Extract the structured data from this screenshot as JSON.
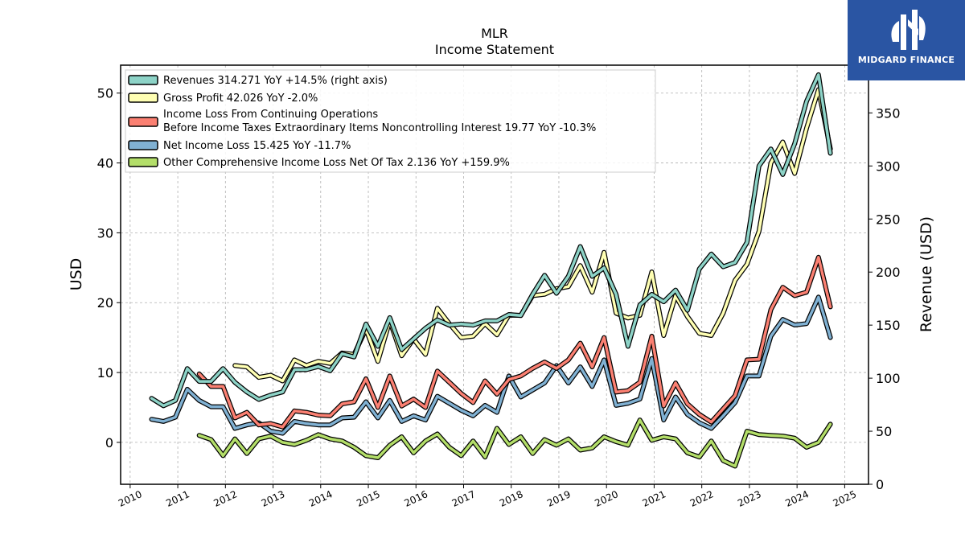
{
  "chart_data": {
    "type": "line",
    "title": "MLR",
    "subtitle": "Income Statement",
    "ylabel": "USD",
    "y2label": "Revenue (USD)",
    "ylim": [
      -6,
      54
    ],
    "y2lim": [
      0,
      395
    ],
    "xlim": [
      2009.8,
      2025.5
    ],
    "yticks": [
      0,
      10,
      20,
      30,
      40,
      50
    ],
    "y2ticks": [
      0,
      50,
      100,
      150,
      200,
      250,
      300,
      350
    ],
    "xticks": [
      "2010",
      "2011",
      "2012",
      "2013",
      "2014",
      "2015",
      "2016",
      "2017",
      "2018",
      "2019",
      "2020",
      "2021",
      "2022",
      "2023",
      "2024",
      "2025"
    ],
    "grid": true,
    "legend_position": "top-left",
    "colors": {
      "revenues": "#8dd3c7",
      "gross_profit": "#ffffb3",
      "income_before_tax": "#fb8072",
      "net_income": "#80b1d3",
      "oci": "#b3de69"
    },
    "series": [
      {
        "key": "revenues",
        "name": "Revenues  314.271 YoY +14.5% (right axis)",
        "axis": "right",
        "color": "#8dd3c7",
        "x": [
          2010.45,
          2010.7,
          2010.95,
          2011.2,
          2011.45,
          2011.7,
          2011.95,
          2012.2,
          2012.45,
          2012.7,
          2012.95,
          2013.2,
          2013.45,
          2013.7,
          2013.95,
          2014.2,
          2014.45,
          2014.7,
          2014.95,
          2015.2,
          2015.45,
          2015.7,
          2015.95,
          2016.2,
          2016.45,
          2016.7,
          2016.95,
          2017.2,
          2017.45,
          2017.7,
          2017.95,
          2018.2,
          2018.45,
          2018.7,
          2018.95,
          2019.2,
          2019.45,
          2019.7,
          2019.95,
          2020.2,
          2020.45,
          2020.7,
          2020.95,
          2021.2,
          2021.45,
          2021.7,
          2021.95,
          2022.2,
          2022.45,
          2022.7,
          2022.95,
          2023.2,
          2023.45,
          2023.7,
          2023.95,
          2024.2,
          2024.45,
          2024.7
        ],
        "values": [
          81,
          74,
          79,
          109,
          97,
          97,
          109,
          96,
          87,
          80,
          84,
          87,
          108,
          108,
          111,
          107,
          123,
          120,
          151,
          130,
          157,
          127,
          137,
          147,
          155,
          150,
          151,
          150,
          154,
          154,
          160,
          159,
          179,
          197,
          180,
          196,
          224,
          196,
          204,
          179,
          130,
          169,
          179,
          172,
          183,
          164,
          203,
          217,
          205,
          209,
          228,
          300,
          316,
          292,
          321,
          361,
          386,
          312
        ]
      },
      {
        "key": "gross_profit",
        "name": "Gross Profit  42.026 YoY -2.0%",
        "axis": "left",
        "color": "#ffffb3",
        "x": [
          2012.2,
          2012.45,
          2012.7,
          2012.95,
          2013.2,
          2013.45,
          2013.7,
          2013.95,
          2014.2,
          2014.45,
          2014.7,
          2014.95,
          2015.2,
          2015.45,
          2015.7,
          2015.95,
          2016.2,
          2016.45,
          2016.7,
          2016.95,
          2017.2,
          2017.45,
          2017.7,
          2017.95,
          2018.2,
          2018.45,
          2018.7,
          2018.95,
          2019.2,
          2019.45,
          2019.7,
          2019.95,
          2020.2,
          2020.45,
          2020.7,
          2020.95,
          2021.2,
          2021.45,
          2021.7,
          2021.95,
          2022.2,
          2022.45,
          2022.7,
          2022.95,
          2023.2,
          2023.45,
          2023.7,
          2023.95,
          2024.2,
          2024.45,
          2024.7
        ],
        "values": [
          11,
          10.8,
          9.3,
          9.6,
          8.8,
          11.8,
          11,
          11.6,
          11.3,
          12.8,
          12.6,
          16.2,
          11.6,
          17.4,
          12.4,
          14.8,
          12.6,
          19.2,
          17,
          15,
          15.2,
          17,
          15.4,
          18.2,
          18.2,
          21,
          21.2,
          22,
          22.3,
          25.3,
          21.5,
          27.2,
          18.5,
          17.8,
          18.2,
          24.4,
          15.3,
          21,
          18,
          15.6,
          15.3,
          18.5,
          23.2,
          25.5,
          30.2,
          40,
          43,
          38.5,
          45,
          50.5,
          42
        ]
      },
      {
        "key": "income_before_tax",
        "name": "Income Loss From Continuing Operations\nBefore Income Taxes Extraordinary Items Noncontrolling Interest  19.77 YoY -10.3%",
        "axis": "left",
        "color": "#fb8072",
        "x": [
          2011.45,
          2011.7,
          2011.95,
          2012.2,
          2012.45,
          2012.7,
          2012.95,
          2013.2,
          2013.45,
          2013.7,
          2013.95,
          2014.2,
          2014.45,
          2014.7,
          2014.95,
          2015.2,
          2015.45,
          2015.7,
          2015.95,
          2016.2,
          2016.45,
          2016.7,
          2016.95,
          2017.2,
          2017.45,
          2017.7,
          2017.95,
          2018.2,
          2018.45,
          2018.7,
          2018.95,
          2019.2,
          2019.45,
          2019.7,
          2019.95,
          2020.2,
          2020.45,
          2020.7,
          2020.95,
          2021.2,
          2021.45,
          2021.7,
          2021.95,
          2022.2,
          2022.45,
          2022.7,
          2022.95,
          2023.2,
          2023.45,
          2023.7,
          2023.95,
          2024.2,
          2024.45,
          2024.7
        ],
        "values": [
          9.8,
          8,
          8,
          3.5,
          4.3,
          2.5,
          2.7,
          2.2,
          4.5,
          4.3,
          3.9,
          3.8,
          5.5,
          5.8,
          9.1,
          5,
          9.5,
          5.2,
          6.2,
          5,
          10.2,
          8.6,
          7,
          5.7,
          8.8,
          6.9,
          9,
          9.5,
          10.6,
          11.5,
          10.6,
          11.8,
          14.2,
          10.8,
          15,
          7.2,
          7.4,
          8.6,
          15.2,
          5.2,
          8.5,
          5.5,
          4,
          2.9,
          4.8,
          6.7,
          11.8,
          11.9,
          19,
          22.2,
          21,
          21.5,
          26.5,
          19.4
        ]
      },
      {
        "key": "net_income",
        "name": "Net Income Loss  15.425 YoY -11.7%",
        "axis": "left",
        "color": "#80b1d3",
        "x": [
          2010.45,
          2010.7,
          2010.95,
          2011.2,
          2011.45,
          2011.7,
          2011.95,
          2012.2,
          2012.45,
          2012.7,
          2012.95,
          2013.2,
          2013.45,
          2013.7,
          2013.95,
          2014.2,
          2014.45,
          2014.7,
          2014.95,
          2015.2,
          2015.45,
          2015.7,
          2015.95,
          2016.2,
          2016.45,
          2016.7,
          2016.95,
          2017.2,
          2017.45,
          2017.7,
          2017.95,
          2018.2,
          2018.45,
          2018.7,
          2018.95,
          2019.2,
          2019.45,
          2019.7,
          2019.95,
          2020.2,
          2020.45,
          2020.7,
          2020.95,
          2021.2,
          2021.45,
          2021.7,
          2021.95,
          2022.2,
          2022.45,
          2022.7,
          2022.95,
          2023.2,
          2023.45,
          2023.7,
          2023.95,
          2024.2,
          2024.45,
          2024.7
        ],
        "values": [
          3.3,
          3,
          3.6,
          7.6,
          6,
          5.1,
          5.1,
          2,
          2.5,
          2.8,
          1.6,
          1.3,
          3,
          2.7,
          2.5,
          2.5,
          3.5,
          3.6,
          5.8,
          3.5,
          6,
          3,
          3.8,
          3.2,
          6.6,
          5.6,
          4.6,
          3.8,
          5.3,
          4.3,
          9.5,
          6.5,
          7.5,
          8.5,
          11,
          8.5,
          10.8,
          8,
          11.8,
          5.3,
          5.6,
          6.2,
          12,
          3.2,
          6.5,
          4,
          2.8,
          2,
          3.8,
          5.7,
          9.5,
          9.5,
          15.2,
          17.6,
          16.8,
          17,
          20.8,
          15
        ]
      },
      {
        "key": "oci",
        "name": "Other Comprehensive Income Loss Net Of Tax  2.136 YoY +159.9%",
        "axis": "left",
        "color": "#b3de69",
        "x": [
          2011.45,
          2011.7,
          2011.95,
          2012.2,
          2012.45,
          2012.7,
          2012.95,
          2013.2,
          2013.45,
          2013.7,
          2013.95,
          2014.2,
          2014.45,
          2014.7,
          2014.95,
          2015.2,
          2015.45,
          2015.7,
          2015.95,
          2016.2,
          2016.45,
          2016.7,
          2016.95,
          2017.2,
          2017.45,
          2017.7,
          2017.95,
          2018.2,
          2018.45,
          2018.7,
          2018.95,
          2019.2,
          2019.45,
          2019.7,
          2019.95,
          2020.2,
          2020.45,
          2020.7,
          2020.95,
          2021.2,
          2021.45,
          2021.7,
          2021.95,
          2022.2,
          2022.45,
          2022.7,
          2022.95,
          2023.2,
          2023.45,
          2023.7,
          2023.95,
          2024.2,
          2024.45,
          2024.7
        ],
        "values": [
          1,
          0.4,
          -1.9,
          0.5,
          -1.6,
          0.5,
          0.9,
          0,
          -0.3,
          0.3,
          1.1,
          0.5,
          0.2,
          -0.7,
          -1.9,
          -2.2,
          -0.4,
          0.8,
          -1.5,
          0.2,
          1.2,
          -0.7,
          -1.9,
          0.2,
          -2.1,
          2,
          -0.3,
          0.8,
          -1.6,
          0.4,
          -0.4,
          0.5,
          -1.1,
          -0.8,
          0.8,
          0.1,
          -0.4,
          3.2,
          0.3,
          0.8,
          0.5,
          -1.5,
          -2.1,
          0.2,
          -2.6,
          -3.4,
          1.6,
          1.1,
          1,
          0.9,
          0.6,
          -0.7,
          0,
          2.6
        ]
      }
    ]
  },
  "logo": {
    "name": "MIDGARD FINANCE",
    "background": "#2a55a3"
  }
}
